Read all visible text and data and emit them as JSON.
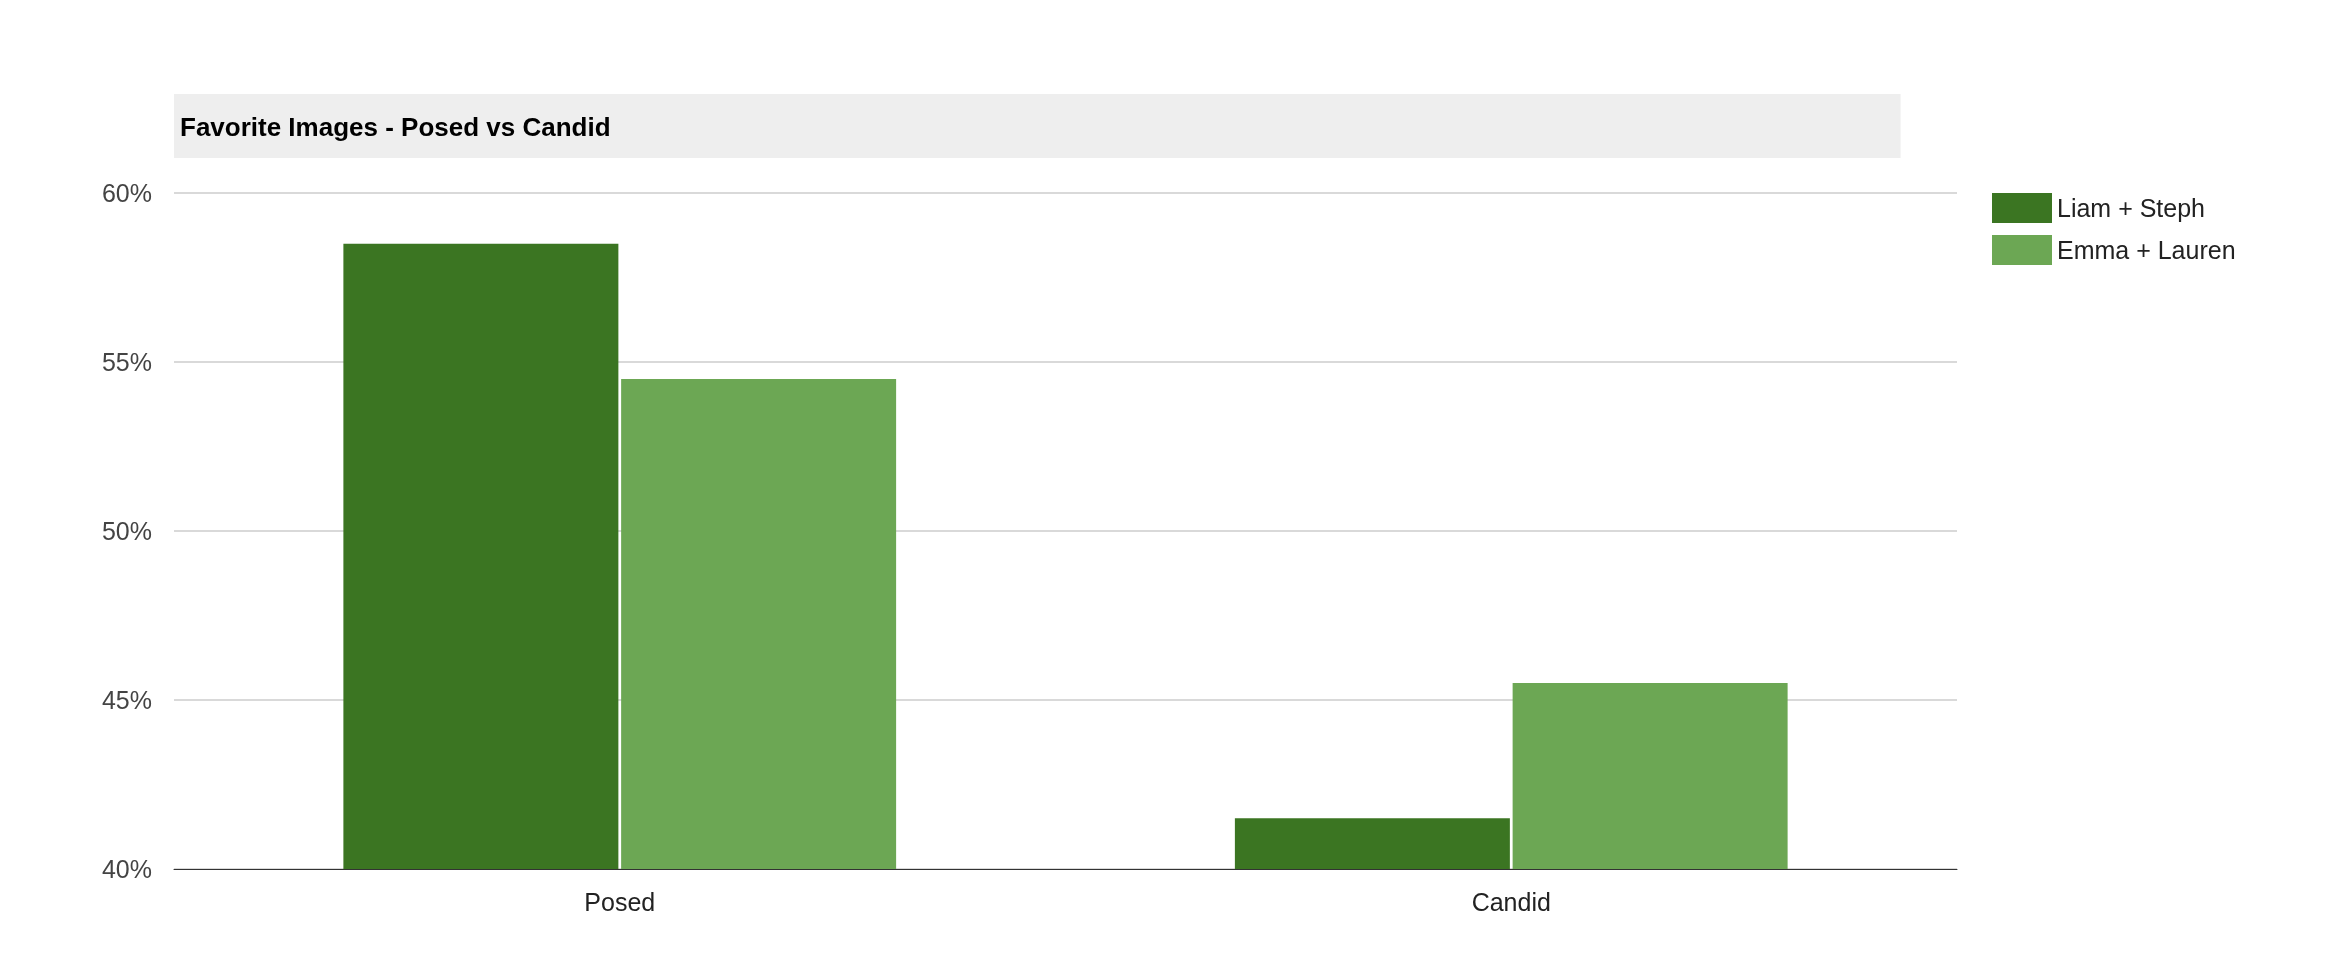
{
  "chart_data": {
    "type": "bar",
    "title": "Favorite Images - Posed vs Candid",
    "categories": [
      "Posed",
      "Candid"
    ],
    "series": [
      {
        "name": "Liam + Steph",
        "color": "#3b7522",
        "values": [
          58.5,
          41.5
        ]
      },
      {
        "name": "Emma + Lauren",
        "color": "#6ca754",
        "values": [
          54.5,
          45.5
        ]
      }
    ],
    "ylim": [
      40,
      60
    ],
    "yticks": [
      {
        "value": 40,
        "label": "40%"
      },
      {
        "value": 45,
        "label": "45%"
      },
      {
        "value": 50,
        "label": "50%"
      },
      {
        "value": 55,
        "label": "55%"
      },
      {
        "value": 60,
        "label": "60%"
      }
    ],
    "grid": "y",
    "legend": "top right"
  }
}
